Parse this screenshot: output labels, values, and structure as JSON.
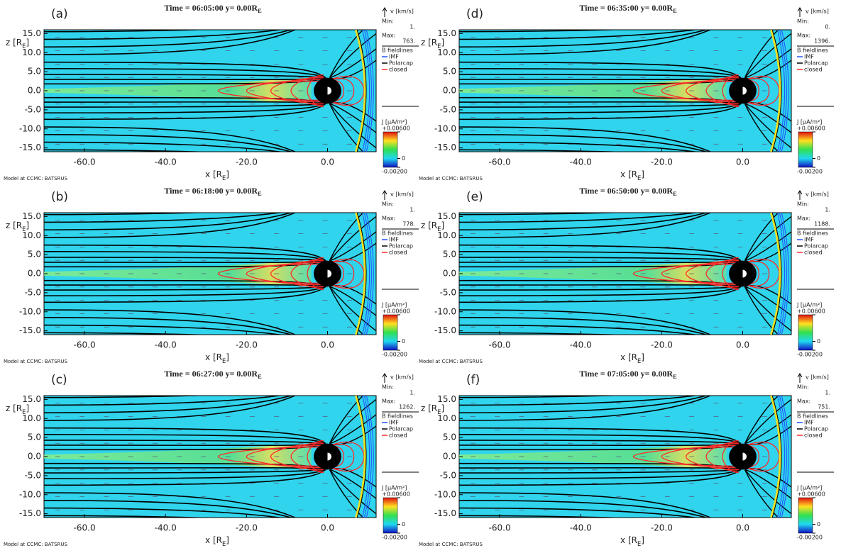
{
  "chart_data": [
    {
      "type": "contour",
      "panel": "(a)",
      "title": [
        "Time = 06:05:00 y= 0.00R",
        "E"
      ],
      "xlabel": [
        "x [R",
        "E",
        "]"
      ],
      "ylabel": [
        "z [R",
        "E",
        "]"
      ],
      "note": "Model at CCMC: BATSRUS",
      "xlim": [
        -70,
        12
      ],
      "ylim": [
        -16,
        16
      ],
      "xticks": [
        {
          "value": -60,
          "label": "-60.0"
        },
        {
          "value": -40,
          "label": "-40.0"
        },
        {
          "value": -20,
          "label": "-20.0"
        },
        {
          "value": 0,
          "label": "0.0"
        }
      ],
      "yticks": [
        {
          "value": 15,
          "label": "15.0"
        },
        {
          "value": 10,
          "label": "10.0"
        },
        {
          "value": 5,
          "label": "5.0"
        },
        {
          "value": 0,
          "label": "0.0"
        },
        {
          "value": -5,
          "label": "-5.0"
        },
        {
          "value": -10,
          "label": "-10.0"
        },
        {
          "value": -15,
          "label": "-15.0"
        }
      ],
      "legend": {
        "v_label": "v [km/s]",
        "min_label": "Min:",
        "min": {
          "value": 1,
          "label": "1."
        },
        "max_label": "Max:",
        "max": {
          "value": 763,
          "label": "763."
        },
        "title": "B fieldlines",
        "series": [
          {
            "name": "IMF",
            "color": "#2050ff"
          },
          {
            "name": "Polarcap",
            "color": "#000000"
          },
          {
            "name": "closed",
            "color": "#ff2a2a"
          }
        ]
      },
      "colorbar": {
        "label": "J [μA/m²]",
        "lim": [
          -0.002,
          0.006
        ],
        "ticks": [
          {
            "value": 0.006,
            "label": "+0.00600"
          },
          0,
          {
            "value": -0.002,
            "label": "-0.00200"
          }
        ]
      }
    },
    {
      "type": "contour",
      "panel": "(b)",
      "title": [
        "Time = 06:18:00 y= 0.00R",
        "E"
      ],
      "xlabel": [
        "x [R",
        "E",
        "]"
      ],
      "ylabel": [
        "z [R",
        "E",
        "]"
      ],
      "note": "Model at CCMC: BATSRUS",
      "xlim": [
        -70,
        12
      ],
      "ylim": [
        -16,
        16
      ],
      "xticks": [
        {
          "value": -60,
          "label": "-60.0"
        },
        {
          "value": -40,
          "label": "-40.0"
        },
        {
          "value": -20,
          "label": "-20.0"
        },
        {
          "value": 0,
          "label": "0.0"
        }
      ],
      "yticks": [
        {
          "value": 15,
          "label": "15.0"
        },
        {
          "value": 10,
          "label": "10.0"
        },
        {
          "value": 5,
          "label": "5.0"
        },
        {
          "value": 0,
          "label": "0.0"
        },
        {
          "value": -5,
          "label": "-5.0"
        },
        {
          "value": -10,
          "label": "-10.0"
        },
        {
          "value": -15,
          "label": "-15.0"
        }
      ],
      "legend": {
        "v_label": "v [km/s]",
        "min_label": "Min:",
        "min": {
          "value": 1,
          "label": "1."
        },
        "max_label": "Max:",
        "max": {
          "value": 778,
          "label": "778."
        },
        "title": "B fieldlines",
        "series": [
          {
            "name": "IMF",
            "color": "#2050ff"
          },
          {
            "name": "Polarcap",
            "color": "#000000"
          },
          {
            "name": "closed",
            "color": "#ff2a2a"
          }
        ]
      },
      "colorbar": {
        "label": "J [μA/m²]",
        "lim": [
          -0.002,
          0.006
        ],
        "ticks": [
          {
            "value": 0.006,
            "label": "+0.00600"
          },
          0,
          {
            "value": -0.002,
            "label": "-0.00200"
          }
        ]
      }
    },
    {
      "type": "contour",
      "panel": "(c)",
      "title": [
        "Time = 06:27:00 y= 0.00R",
        "E"
      ],
      "xlabel": [
        "x [R",
        "E",
        "]"
      ],
      "ylabel": [
        "z [R",
        "E",
        "]"
      ],
      "note": "Model at CCMC: BATSRUS",
      "xlim": [
        -70,
        12
      ],
      "ylim": [
        -16,
        16
      ],
      "xticks": [
        {
          "value": -60,
          "label": "-60.0"
        },
        {
          "value": -40,
          "label": "-40.0"
        },
        {
          "value": -20,
          "label": "-20.0"
        },
        {
          "value": 0,
          "label": "0.0"
        }
      ],
      "yticks": [
        {
          "value": 15,
          "label": "15.0"
        },
        {
          "value": 10,
          "label": "10.0"
        },
        {
          "value": 5,
          "label": "5.0"
        },
        {
          "value": 0,
          "label": "0.0"
        },
        {
          "value": -5,
          "label": "-5.0"
        },
        {
          "value": -10,
          "label": "-10.0"
        },
        {
          "value": -15,
          "label": "-15.0"
        }
      ],
      "legend": {
        "v_label": "v [km/s]",
        "min_label": "Min:",
        "min": {
          "value": 1,
          "label": "1."
        },
        "max_label": "Max:",
        "max": {
          "value": 1262,
          "label": "1262."
        },
        "title": "B fieldlines",
        "series": [
          {
            "name": "IMF",
            "color": "#2050ff"
          },
          {
            "name": "Polarcap",
            "color": "#000000"
          },
          {
            "name": "closed",
            "color": "#ff2a2a"
          }
        ]
      },
      "colorbar": {
        "label": "J [μA/m²]",
        "lim": [
          -0.002,
          0.006
        ],
        "ticks": [
          {
            "value": 0.006,
            "label": "+0.00600"
          },
          0,
          {
            "value": -0.002,
            "label": "-0.00200"
          }
        ]
      }
    },
    {
      "type": "contour",
      "panel": "(d)",
      "title": [
        "Time = 06:35:00 y= 0.00R",
        "E"
      ],
      "xlabel": [
        "x [R",
        "E",
        "]"
      ],
      "ylabel": [
        "z [R",
        "E",
        "]"
      ],
      "note": "Model at CCMC: BATSRUS",
      "xlim": [
        -70,
        12
      ],
      "ylim": [
        -16,
        16
      ],
      "xticks": [
        {
          "value": -60,
          "label": "-60.0"
        },
        {
          "value": -40,
          "label": "-40.0"
        },
        {
          "value": -20,
          "label": "-20.0"
        },
        {
          "value": 0,
          "label": "0.0"
        }
      ],
      "yticks": [
        {
          "value": 15,
          "label": "15.0"
        },
        {
          "value": 10,
          "label": "10.0"
        },
        {
          "value": 5,
          "label": "5.0"
        },
        {
          "value": 0,
          "label": "0.0"
        },
        {
          "value": -5,
          "label": "-5.0"
        },
        {
          "value": -10,
          "label": "-10.0"
        },
        {
          "value": -15,
          "label": "-15.0"
        }
      ],
      "legend": {
        "v_label": "v [km/s]",
        "min_label": "Min:",
        "min": {
          "value": 0,
          "label": "0."
        },
        "max_label": "Max:",
        "max": {
          "value": 1396,
          "label": "1396."
        },
        "title": "B fieldlines",
        "series": [
          {
            "name": "IMF",
            "color": "#2050ff"
          },
          {
            "name": "Polarcap",
            "color": "#000000"
          },
          {
            "name": "closed",
            "color": "#ff2a2a"
          }
        ]
      },
      "colorbar": {
        "label": "J [μA/m²]",
        "lim": [
          -0.002,
          0.006
        ],
        "ticks": [
          {
            "value": 0.006,
            "label": "+0.00600"
          },
          0,
          {
            "value": -0.002,
            "label": "-0.00200"
          }
        ]
      }
    },
    {
      "type": "contour",
      "panel": "(e)",
      "title": [
        "Time = 06:50:00 y= 0.00R",
        "E"
      ],
      "xlabel": [
        "x [R",
        "E",
        "]"
      ],
      "ylabel": [
        "z [R",
        "E",
        "]"
      ],
      "note": "Model at CCMC: BATSRUS",
      "xlim": [
        -70,
        12
      ],
      "ylim": [
        -16,
        16
      ],
      "xticks": [
        {
          "value": -60,
          "label": "-60.0"
        },
        {
          "value": -40,
          "label": "-40.0"
        },
        {
          "value": -20,
          "label": "-20.0"
        },
        {
          "value": 0,
          "label": "0.0"
        }
      ],
      "yticks": [
        {
          "value": 15,
          "label": "15.0"
        },
        {
          "value": 10,
          "label": "10.0"
        },
        {
          "value": 5,
          "label": "5.0"
        },
        {
          "value": 0,
          "label": "0.0"
        },
        {
          "value": -5,
          "label": "-5.0"
        },
        {
          "value": -10,
          "label": "-10.0"
        },
        {
          "value": -15,
          "label": "-15.0"
        }
      ],
      "legend": {
        "v_label": "v [km/s]",
        "min_label": "Min:",
        "min": {
          "value": 1,
          "label": "1."
        },
        "max_label": "Max:",
        "max": {
          "value": 1188,
          "label": "1188."
        },
        "title": "B fieldlines",
        "series": [
          {
            "name": "IMF",
            "color": "#2050ff"
          },
          {
            "name": "Polarcap",
            "color": "#000000"
          },
          {
            "name": "closed",
            "color": "#ff2a2a"
          }
        ]
      },
      "colorbar": {
        "label": "J [μA/m²]",
        "lim": [
          -0.002,
          0.006
        ],
        "ticks": [
          {
            "value": 0.006,
            "label": "+0.00600"
          },
          0,
          {
            "value": -0.002,
            "label": "-0.00200"
          }
        ]
      }
    },
    {
      "type": "contour",
      "panel": "(f)",
      "title": [
        "Time = 07:05:00 y= 0.00R",
        "E"
      ],
      "xlabel": [
        "x [R",
        "E",
        "]"
      ],
      "ylabel": [
        "z [R",
        "E",
        "]"
      ],
      "note": "Model at CCMC: BATSRUS",
      "xlim": [
        -70,
        12
      ],
      "ylim": [
        -16,
        16
      ],
      "xticks": [
        {
          "value": -60,
          "label": "-60.0"
        },
        {
          "value": -40,
          "label": "-40.0"
        },
        {
          "value": -20,
          "label": "-20.0"
        },
        {
          "value": 0,
          "label": "0.0"
        }
      ],
      "yticks": [
        {
          "value": 15,
          "label": "15.0"
        },
        {
          "value": 10,
          "label": "10.0"
        },
        {
          "value": 5,
          "label": "5.0"
        },
        {
          "value": 0,
          "label": "0.0"
        },
        {
          "value": -5,
          "label": "-5.0"
        },
        {
          "value": -10,
          "label": "-10.0"
        },
        {
          "value": -15,
          "label": "-15.0"
        }
      ],
      "legend": {
        "v_label": "v [km/s]",
        "min_label": "Min:",
        "min": {
          "value": 1,
          "label": "1."
        },
        "max_label": "Max:",
        "max": {
          "value": 751,
          "label": "751."
        },
        "title": "B fieldlines",
        "series": [
          {
            "name": "IMF",
            "color": "#2050ff"
          },
          {
            "name": "Polarcap",
            "color": "#000000"
          },
          {
            "name": "closed",
            "color": "#ff2a2a"
          }
        ]
      },
      "colorbar": {
        "label": "J [μA/m²]",
        "lim": [
          -0.002,
          0.006
        ],
        "ticks": [
          {
            "value": 0.006,
            "label": "+0.00600"
          },
          0,
          {
            "value": -0.002,
            "label": "-0.00200"
          }
        ]
      }
    }
  ]
}
